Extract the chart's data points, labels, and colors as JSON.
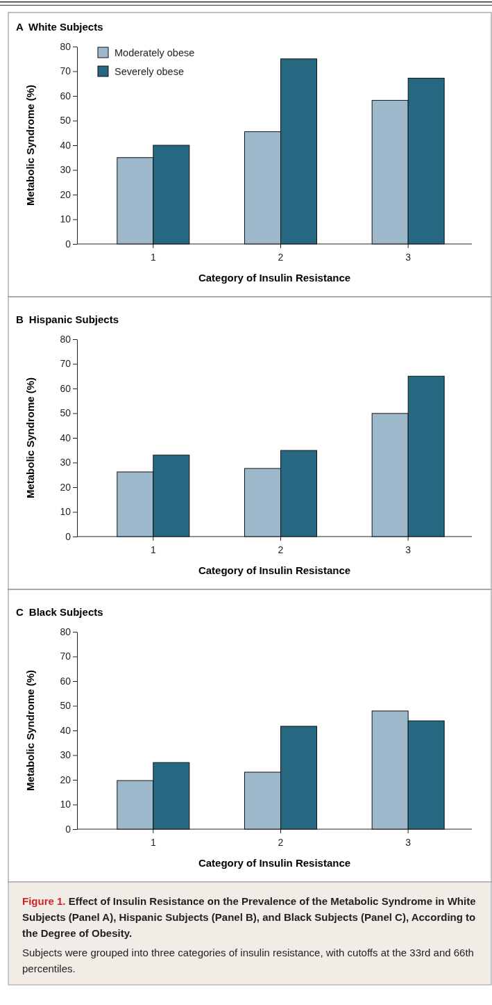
{
  "chart_data": [
    {
      "type": "bar",
      "title": "A White Subjects",
      "xlabel": "Category of Insulin Resistance",
      "ylabel": "Metabolic Syndrome (%)",
      "categories": [
        "1",
        "2",
        "3"
      ],
      "ylim": [
        0,
        80
      ],
      "yticks": [
        0,
        10,
        20,
        30,
        40,
        50,
        60,
        70,
        80
      ],
      "legend": "top left",
      "series": [
        {
          "name": "Moderately obese",
          "color": "#9db8cb",
          "values": [
            35,
            45.5,
            58.2
          ]
        },
        {
          "name": "Severely obese",
          "color": "#266781",
          "values": [
            40,
            75,
            67.2
          ]
        }
      ]
    },
    {
      "type": "bar",
      "title": "B Hispanic Subjects",
      "xlabel": "Category of Insulin Resistance",
      "ylabel": "Metabolic Syndrome (%)",
      "categories": [
        "1",
        "2",
        "3"
      ],
      "ylim": [
        0,
        80
      ],
      "yticks": [
        0,
        10,
        20,
        30,
        40,
        50,
        60,
        70,
        80
      ],
      "series": [
        {
          "color": "#9db8cb",
          "values": [
            26.2,
            27.6,
            49.9
          ]
        },
        {
          "color": "#266781",
          "values": [
            33,
            34.9,
            65
          ]
        }
      ]
    },
    {
      "type": "bar",
      "title": "C Black Subjects",
      "xlabel": "Category of Insulin Resistance",
      "ylabel": "Metabolic Syndrome (%)",
      "categories": [
        "1",
        "2",
        "3"
      ],
      "ylim": [
        0,
        80
      ],
      "yticks": [
        0,
        10,
        20,
        30,
        40,
        50,
        60,
        70,
        80
      ],
      "series": [
        {
          "color": "#9db8cb",
          "values": [
            19.7,
            23.1,
            47.9
          ]
        },
        {
          "color": "#266781",
          "values": [
            27,
            41.7,
            43.9
          ]
        }
      ],
      "annotations": [
        "Figure 1.",
        "Effect of Insulin Resistance on the Prevalence of the Metabolic Syndrome in White Subjects (Panel A), Hispanic Subjects (Panel B), and Black Subjects (Panel C), According to the Degree of Obesity.",
        "Subjects were grouped into three categories of insulin resistance, with cutoffs at the 33rd and 66th percentiles."
      ]
    }
  ]
}
